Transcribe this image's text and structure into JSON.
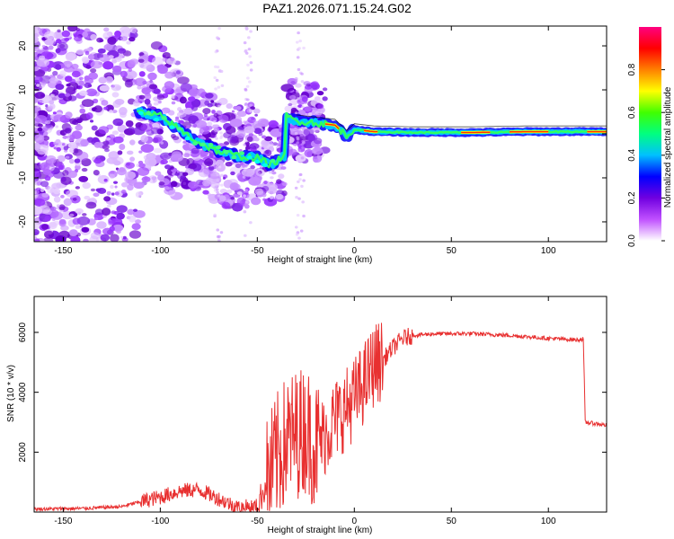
{
  "title": "PAZ1.2026.071.15.24.G02",
  "chart_data": [
    {
      "type": "heatmap",
      "name": "spectrogram",
      "xlabel": "Height of straight line (km)",
      "ylabel": "Frequency (Hz)",
      "xlim": [
        -165,
        130
      ],
      "ylim": [
        -24.5,
        24.5
      ],
      "xticks": [
        -150,
        -100,
        -50,
        0,
        50,
        100
      ],
      "yticks": [
        -20,
        -10,
        0,
        10,
        20
      ],
      "ridge": [
        {
          "x": -112,
          "y": 5
        },
        {
          "x": -100,
          "y": 4
        },
        {
          "x": -90,
          "y": 1
        },
        {
          "x": -80,
          "y": -2
        },
        {
          "x": -70,
          "y": -4
        },
        {
          "x": -60,
          "y": -5
        },
        {
          "x": -50,
          "y": -5.5
        },
        {
          "x": -43,
          "y": -7
        },
        {
          "x": -36,
          "y": -5
        },
        {
          "x": -35,
          "y": 4
        },
        {
          "x": -30,
          "y": 3
        },
        {
          "x": -20,
          "y": 2.5
        },
        {
          "x": -10,
          "y": 2
        },
        {
          "x": -4,
          "y": -0.5
        },
        {
          "x": 0,
          "y": 1
        },
        {
          "x": 10,
          "y": 0.5
        },
        {
          "x": 30,
          "y": 0.3
        },
        {
          "x": 60,
          "y": 0.3
        },
        {
          "x": 90,
          "y": 0.5
        },
        {
          "x": 130,
          "y": 0.5
        }
      ],
      "colorbar": {
        "label": "Normalized spectral amplitude",
        "range": [
          0,
          1
        ],
        "ticks": [
          "0.0",
          "0.2",
          "0.4",
          "0.6",
          "0.8"
        ],
        "colors": [
          "#ffffff",
          "#c050ff",
          "#7000e0",
          "#0000ff",
          "#00c0ff",
          "#00ff80",
          "#40ff00",
          "#ffff00",
          "#ff8000",
          "#ff0000",
          "#ff0080"
        ]
      }
    },
    {
      "type": "line",
      "name": "snr",
      "xlabel": "Height of straight line (km)",
      "ylabel": "SNR (10 * v/v)",
      "xlim": [
        -165,
        130
      ],
      "ylim": [
        0,
        7200
      ],
      "xticks": [
        -150,
        -100,
        -50,
        0,
        50,
        100
      ],
      "yticks": [
        2000,
        4000,
        6000
      ],
      "color": "#e83030",
      "series": [
        {
          "x": -165,
          "y": 100
        },
        {
          "x": -140,
          "y": 120
        },
        {
          "x": -120,
          "y": 180
        },
        {
          "x": -110,
          "y": 350
        },
        {
          "x": -100,
          "y": 500
        },
        {
          "x": -90,
          "y": 700
        },
        {
          "x": -80,
          "y": 750
        },
        {
          "x": -70,
          "y": 450
        },
        {
          "x": -60,
          "y": 150
        },
        {
          "x": -50,
          "y": 200
        },
        {
          "x": -45,
          "y": 1000
        },
        {
          "x": -40,
          "y": 1800
        },
        {
          "x": -35,
          "y": 2400
        },
        {
          "x": -30,
          "y": 2600
        },
        {
          "x": -25,
          "y": 2800
        },
        {
          "x": -20,
          "y": 2200
        },
        {
          "x": -15,
          "y": 2600
        },
        {
          "x": -10,
          "y": 3100
        },
        {
          "x": -5,
          "y": 3400
        },
        {
          "x": 0,
          "y": 3800
        },
        {
          "x": 5,
          "y": 4300
        },
        {
          "x": 10,
          "y": 4900
        },
        {
          "x": 15,
          "y": 5100
        },
        {
          "x": 20,
          "y": 5500
        },
        {
          "x": 25,
          "y": 5800
        },
        {
          "x": 30,
          "y": 5900
        },
        {
          "x": 40,
          "y": 5950
        },
        {
          "x": 60,
          "y": 5960
        },
        {
          "x": 80,
          "y": 5900
        },
        {
          "x": 100,
          "y": 5800
        },
        {
          "x": 115,
          "y": 5750
        },
        {
          "x": 118,
          "y": 5780
        },
        {
          "x": 119,
          "y": 3000
        },
        {
          "x": 130,
          "y": 2900
        }
      ]
    }
  ]
}
